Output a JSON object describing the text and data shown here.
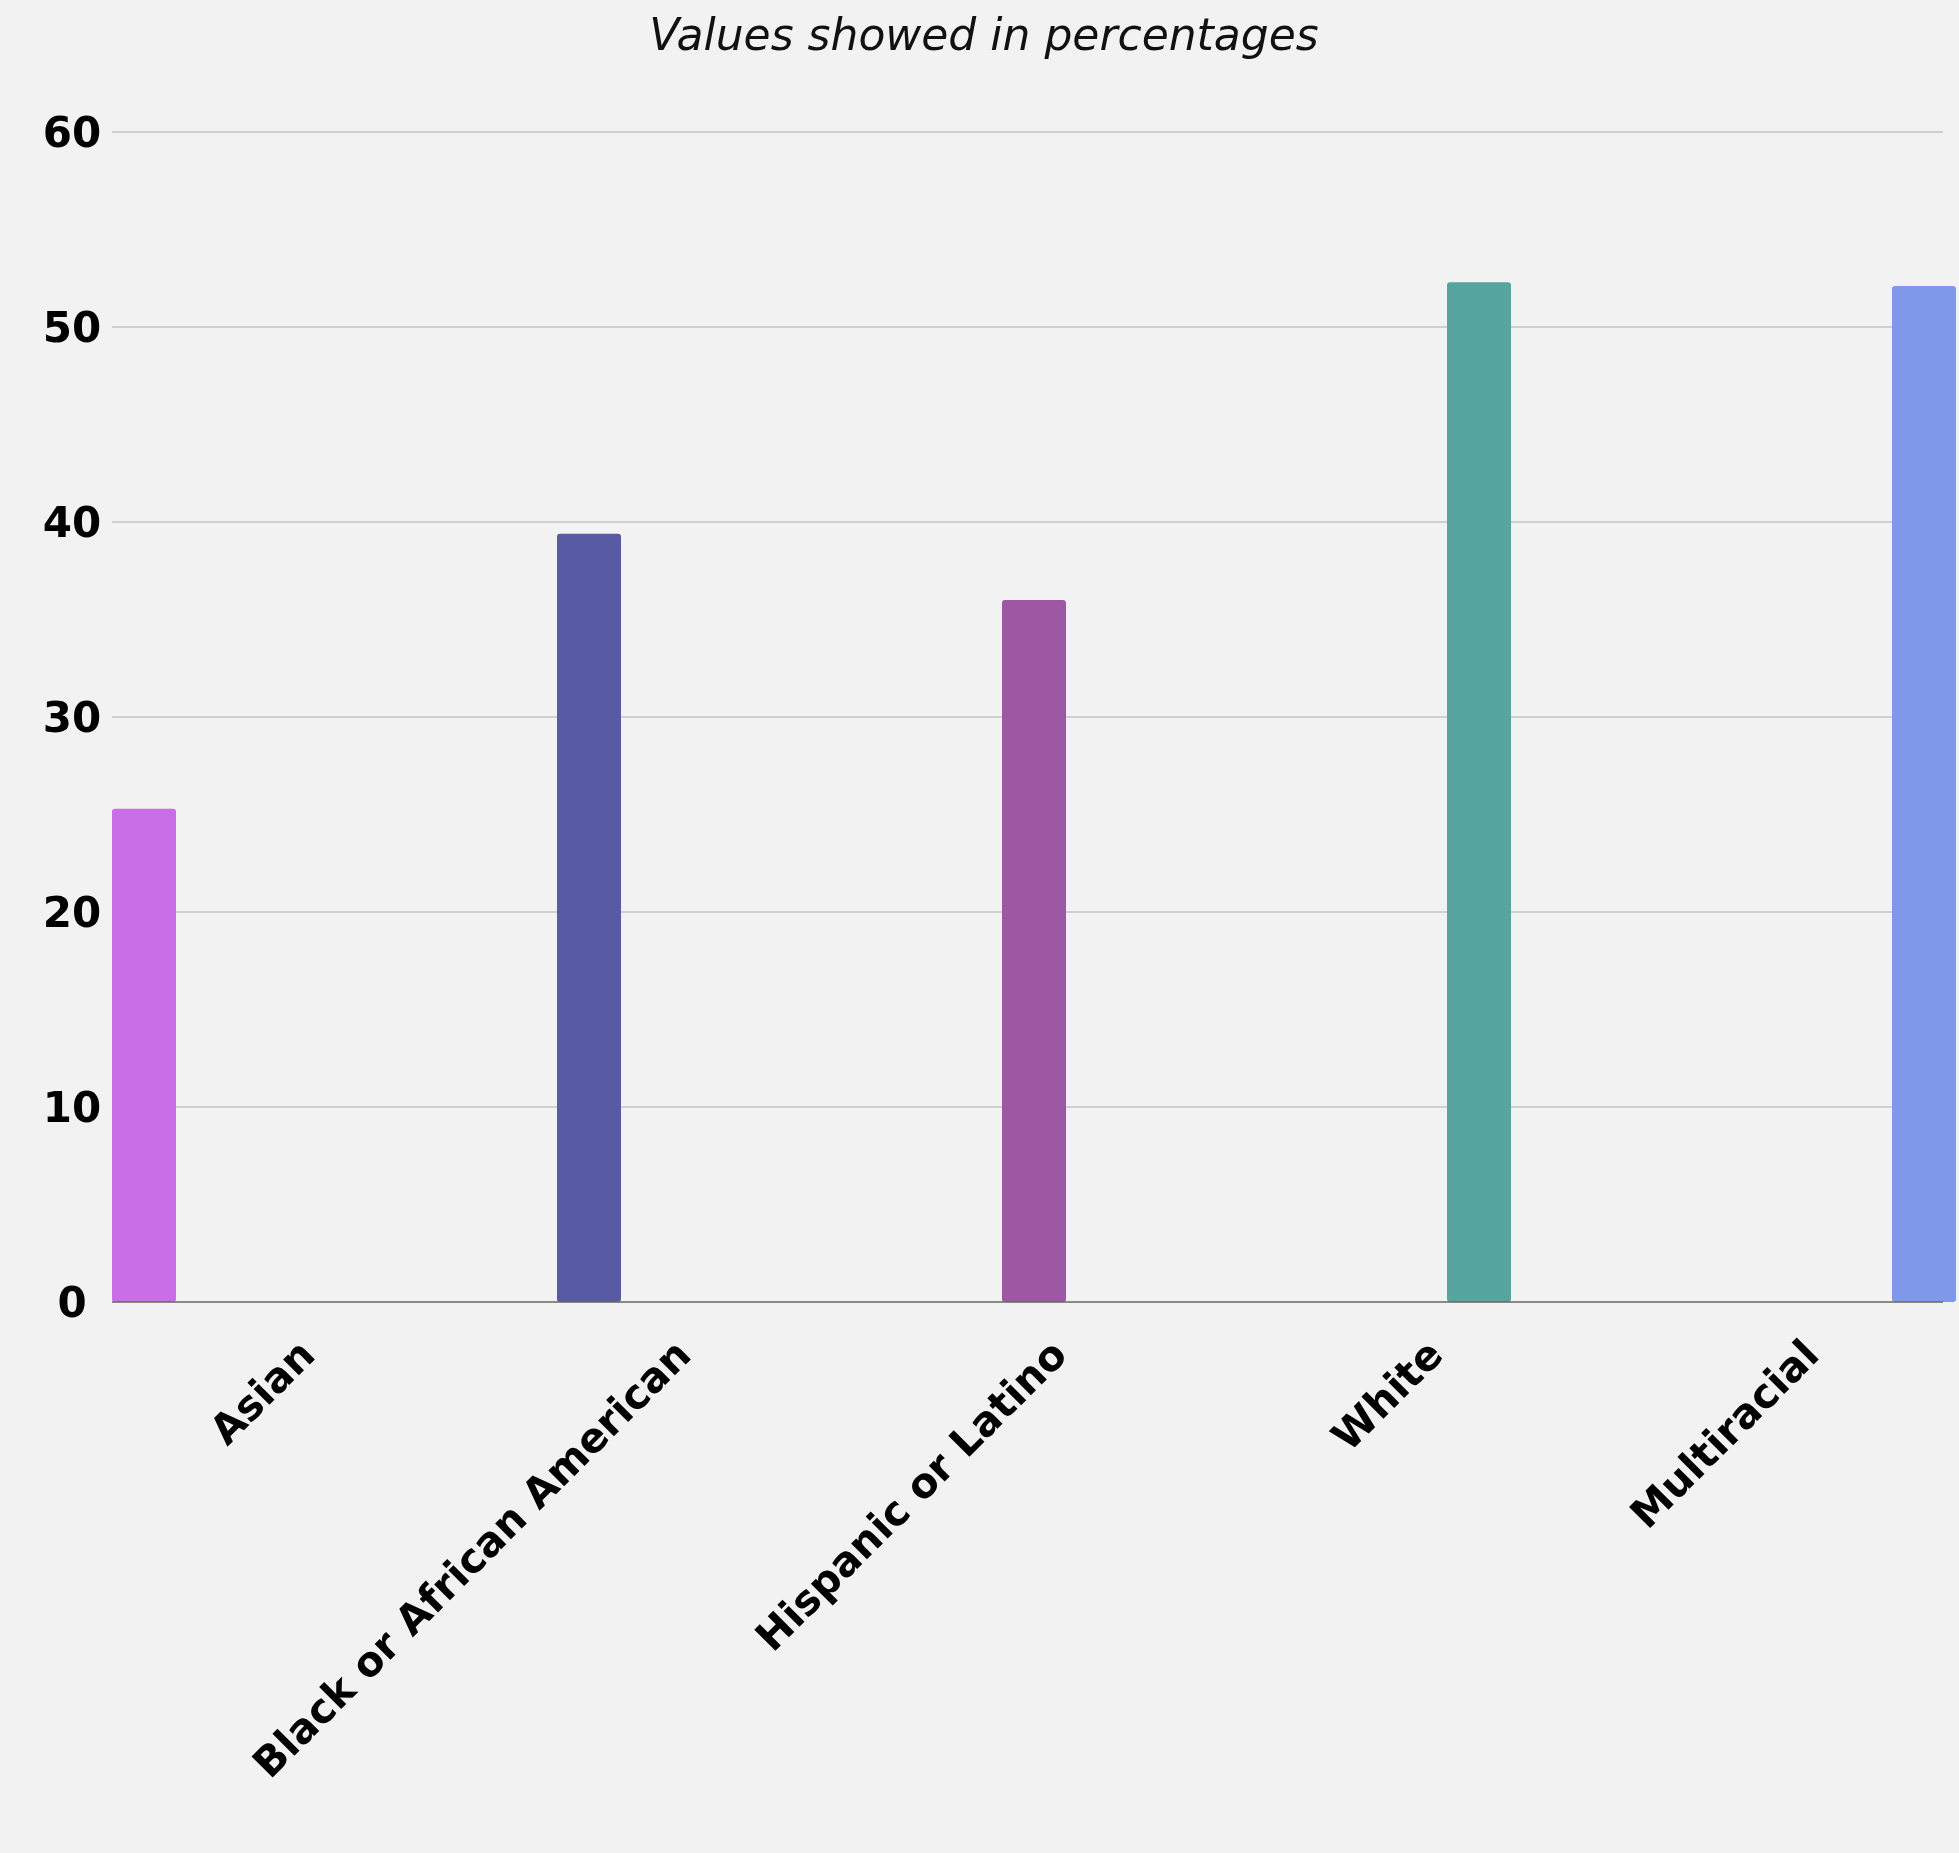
{
  "chart_data": {
    "type": "bar",
    "title": "Values showed in percentages",
    "categories": [
      "Asian",
      "Black or African American",
      "Hispanic or Latino",
      "White",
      "Multiracial"
    ],
    "values": [
      25.3,
      39.4,
      36.0,
      52.3,
      52.1
    ],
    "colors": [
      "#c96ee6",
      "#585ba3",
      "#9e57a2",
      "#57a59f",
      "#8098ea"
    ],
    "ylim": [
      0,
      60
    ],
    "yticks": [
      0,
      10,
      20,
      30,
      40,
      50,
      60
    ],
    "grid": "y"
  }
}
